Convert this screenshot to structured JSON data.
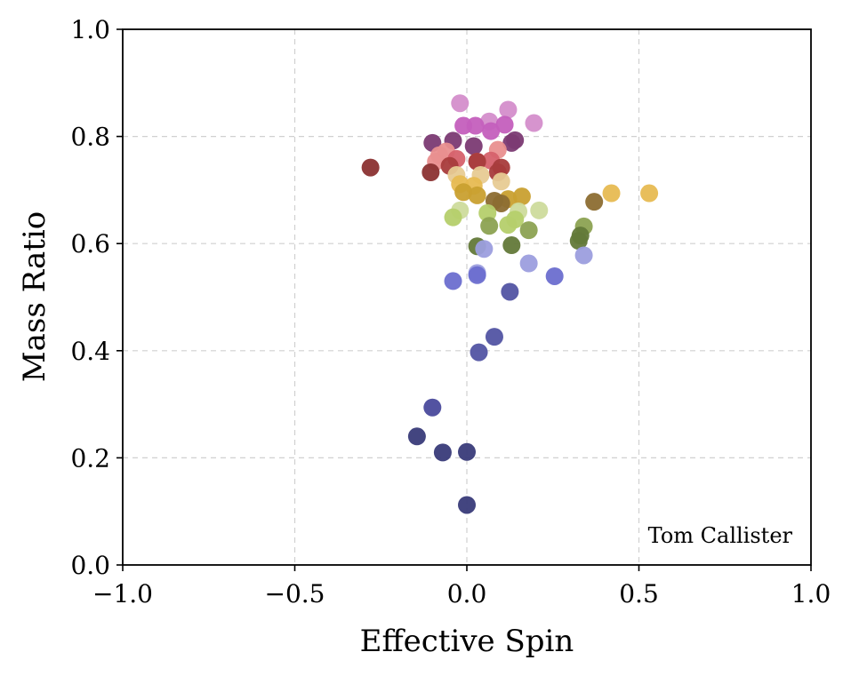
{
  "chart_data": {
    "type": "scatter",
    "title": "",
    "xlabel": "Effective Spin",
    "ylabel": "Mass Ratio",
    "xlim": [
      -1.0,
      1.0
    ],
    "ylim": [
      0.0,
      1.0
    ],
    "grid": true,
    "annotation": "Tom Callister",
    "xticks": [
      "−1.0",
      "−0.5",
      "0.0",
      "0.5",
      "1.0"
    ],
    "yticks": [
      "0.0",
      "0.2",
      "0.4",
      "0.6",
      "0.8",
      "1.0"
    ],
    "xtick_values": [
      -1.0,
      -0.5,
      0.0,
      0.5,
      1.0
    ],
    "ytick_values": [
      0.0,
      0.2,
      0.4,
      0.6,
      0.8,
      1.0
    ],
    "points": [
      {
        "x": -0.02,
        "y": 0.862,
        "color": "#d48ecb"
      },
      {
        "x": 0.12,
        "y": 0.85,
        "color": "#d48ecb"
      },
      {
        "x": 0.195,
        "y": 0.825,
        "color": "#d48ecb"
      },
      {
        "x": 0.065,
        "y": 0.828,
        "color": "#d48ecb"
      },
      {
        "x": -0.01,
        "y": 0.82,
        "color": "#c45fbd"
      },
      {
        "x": 0.025,
        "y": 0.82,
        "color": "#c45fbd"
      },
      {
        "x": 0.11,
        "y": 0.822,
        "color": "#c45fbd"
      },
      {
        "x": 0.07,
        "y": 0.81,
        "color": "#c45fbd"
      },
      {
        "x": -0.1,
        "y": 0.788,
        "color": "#7b3a73"
      },
      {
        "x": -0.04,
        "y": 0.792,
        "color": "#7b3a73"
      },
      {
        "x": 0.02,
        "y": 0.782,
        "color": "#7b3a73"
      },
      {
        "x": 0.13,
        "y": 0.788,
        "color": "#7b3a73"
      },
      {
        "x": 0.14,
        "y": 0.793,
        "color": "#7b3a73"
      },
      {
        "x": 0.09,
        "y": 0.775,
        "color": "#e98f8f"
      },
      {
        "x": -0.08,
        "y": 0.765,
        "color": "#e98f8f"
      },
      {
        "x": -0.06,
        "y": 0.772,
        "color": "#e98f8f"
      },
      {
        "x": -0.09,
        "y": 0.753,
        "color": "#e98f8f"
      },
      {
        "x": 0.07,
        "y": 0.755,
        "color": "#d6616b"
      },
      {
        "x": 0.03,
        "y": 0.753,
        "color": "#d6616b"
      },
      {
        "x": -0.03,
        "y": 0.758,
        "color": "#d6616b"
      },
      {
        "x": -0.05,
        "y": 0.745,
        "color": "#a83c3c"
      },
      {
        "x": 0.1,
        "y": 0.742,
        "color": "#a83c3c"
      },
      {
        "x": 0.09,
        "y": 0.733,
        "color": "#a83c3c"
      },
      {
        "x": 0.03,
        "y": 0.753,
        "color": "#a83c3c"
      },
      {
        "x": -0.28,
        "y": 0.742,
        "color": "#8b3232"
      },
      {
        "x": -0.105,
        "y": 0.733,
        "color": "#8b3232"
      },
      {
        "x": -0.03,
        "y": 0.728,
        "color": "#e7cb94"
      },
      {
        "x": 0.04,
        "y": 0.728,
        "color": "#e7cb94"
      },
      {
        "x": 0.1,
        "y": 0.716,
        "color": "#e7cb94"
      },
      {
        "x": -0.02,
        "y": 0.711,
        "color": "#e7ba52"
      },
      {
        "x": 0.02,
        "y": 0.708,
        "color": "#e7ba52"
      },
      {
        "x": 0.42,
        "y": 0.694,
        "color": "#e7ba52"
      },
      {
        "x": 0.53,
        "y": 0.694,
        "color": "#e7ba52"
      },
      {
        "x": -0.01,
        "y": 0.696,
        "color": "#c9a030"
      },
      {
        "x": 0.03,
        "y": 0.69,
        "color": "#c9a030"
      },
      {
        "x": 0.16,
        "y": 0.688,
        "color": "#c9a030"
      },
      {
        "x": 0.12,
        "y": 0.683,
        "color": "#c9a030"
      },
      {
        "x": 0.08,
        "y": 0.68,
        "color": "#8c6d31"
      },
      {
        "x": 0.37,
        "y": 0.678,
        "color": "#8c6d31"
      },
      {
        "x": 0.1,
        "y": 0.675,
        "color": "#8c6d31"
      },
      {
        "x": -0.02,
        "y": 0.662,
        "color": "#cedb9c"
      },
      {
        "x": 0.15,
        "y": 0.66,
        "color": "#cedb9c"
      },
      {
        "x": 0.21,
        "y": 0.662,
        "color": "#cedb9c"
      },
      {
        "x": -0.04,
        "y": 0.649,
        "color": "#b5cf6b"
      },
      {
        "x": 0.06,
        "y": 0.657,
        "color": "#b5cf6b"
      },
      {
        "x": 0.14,
        "y": 0.645,
        "color": "#b5cf6b"
      },
      {
        "x": 0.12,
        "y": 0.635,
        "color": "#b5cf6b"
      },
      {
        "x": 0.065,
        "y": 0.633,
        "color": "#8ca252"
      },
      {
        "x": 0.34,
        "y": 0.632,
        "color": "#8ca252"
      },
      {
        "x": 0.18,
        "y": 0.625,
        "color": "#8ca252"
      },
      {
        "x": 0.33,
        "y": 0.615,
        "color": "#637939"
      },
      {
        "x": 0.325,
        "y": 0.605,
        "color": "#637939"
      },
      {
        "x": 0.03,
        "y": 0.595,
        "color": "#637939"
      },
      {
        "x": 0.13,
        "y": 0.597,
        "color": "#637939"
      },
      {
        "x": 0.05,
        "y": 0.59,
        "color": "#9c9ede"
      },
      {
        "x": 0.18,
        "y": 0.563,
        "color": "#9c9ede"
      },
      {
        "x": 0.34,
        "y": 0.578,
        "color": "#9c9ede"
      },
      {
        "x": 0.03,
        "y": 0.545,
        "color": "#9c9ede"
      },
      {
        "x": -0.04,
        "y": 0.53,
        "color": "#6b6ecf"
      },
      {
        "x": 0.03,
        "y": 0.541,
        "color": "#6b6ecf"
      },
      {
        "x": 0.255,
        "y": 0.539,
        "color": "#6b6ecf"
      },
      {
        "x": 0.125,
        "y": 0.51,
        "color": "#5254a3"
      },
      {
        "x": 0.08,
        "y": 0.426,
        "color": "#5254a3"
      },
      {
        "x": 0.035,
        "y": 0.397,
        "color": "#5254a3"
      },
      {
        "x": -0.1,
        "y": 0.294,
        "color": "#4a4a9c"
      },
      {
        "x": -0.145,
        "y": 0.24,
        "color": "#393b79"
      },
      {
        "x": -0.07,
        "y": 0.21,
        "color": "#393b79"
      },
      {
        "x": 0.0,
        "y": 0.211,
        "color": "#393b79"
      },
      {
        "x": 0.0,
        "y": 0.112,
        "color": "#393b79"
      }
    ]
  }
}
